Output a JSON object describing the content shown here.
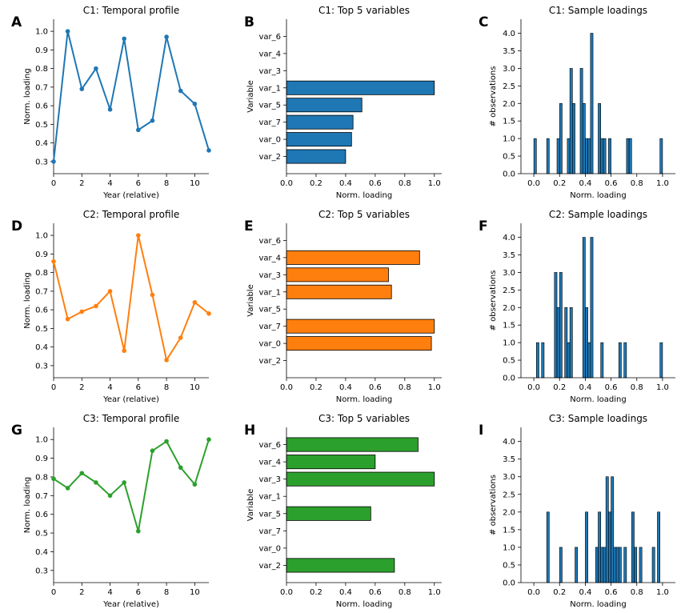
{
  "chart_data": [
    {
      "panel": "A",
      "type": "line",
      "title": "C1: Temporal profile",
      "xlabel": "Year (relative)",
      "ylabel": "Norm. loading",
      "xlim": [
        0,
        11
      ],
      "ylim": [
        0.235,
        1.065
      ],
      "xticks": [
        0,
        2,
        4,
        6,
        8,
        10
      ],
      "yticks": [
        0.3,
        0.4,
        0.5,
        0.6,
        0.7,
        0.8,
        0.9,
        1.0
      ],
      "color": "#1f77b4",
      "x": [
        0,
        1,
        2,
        3,
        4,
        5,
        6,
        7,
        8,
        9,
        10,
        11
      ],
      "y": [
        0.3,
        1.0,
        0.69,
        0.8,
        0.58,
        0.96,
        0.47,
        0.52,
        0.97,
        0.68,
        0.61,
        0.36
      ]
    },
    {
      "panel": "B",
      "type": "bar",
      "orientation": "horizontal",
      "title": "C1: Top 5 variables",
      "xlabel": "Norm. loading",
      "ylabel": "Variable",
      "xlim": [
        0,
        1.05
      ],
      "xticks": [
        0.0,
        0.2,
        0.4,
        0.6,
        0.8,
        1.0
      ],
      "color": "#1f77b4",
      "categories": [
        "var_6",
        "var_4",
        "var_3",
        "var_1",
        "var_5",
        "var_7",
        "var_0",
        "var_2"
      ],
      "values": [
        0,
        0,
        0,
        1.0,
        0.51,
        0.45,
        0.44,
        0.4
      ]
    },
    {
      "panel": "C",
      "type": "bar",
      "subtype": "histogram",
      "title": "C1: Sample loadings",
      "xlabel": "Norm. loading",
      "ylabel": "# observations",
      "xlim": [
        -0.1,
        1.1
      ],
      "ylim": [
        0,
        4.4
      ],
      "xticks": [
        0.0,
        0.2,
        0.4,
        0.6,
        0.8,
        1.0
      ],
      "yticks": [
        0.0,
        0.5,
        1.0,
        1.5,
        2.0,
        2.5,
        3.0,
        3.5,
        4.0
      ],
      "color": "#1f77b4",
      "bin_width": 0.02,
      "bins": [
        [
          0.0,
          1
        ],
        [
          0.1,
          1
        ],
        [
          0.18,
          1
        ],
        [
          0.2,
          2
        ],
        [
          0.26,
          1
        ],
        [
          0.28,
          3
        ],
        [
          0.3,
          2
        ],
        [
          0.36,
          3
        ],
        [
          0.38,
          2
        ],
        [
          0.4,
          1
        ],
        [
          0.42,
          1
        ],
        [
          0.44,
          4
        ],
        [
          0.5,
          2
        ],
        [
          0.52,
          1
        ],
        [
          0.54,
          1
        ],
        [
          0.58,
          1
        ],
        [
          0.72,
          1
        ],
        [
          0.74,
          1
        ],
        [
          0.98,
          1
        ]
      ]
    },
    {
      "panel": "D",
      "type": "line",
      "title": "C2: Temporal profile",
      "xlabel": "Year (relative)",
      "ylabel": "Norm. loading",
      "xlim": [
        0,
        11
      ],
      "ylim": [
        0.235,
        1.065
      ],
      "xticks": [
        0,
        2,
        4,
        6,
        8,
        10
      ],
      "yticks": [
        0.3,
        0.4,
        0.5,
        0.6,
        0.7,
        0.8,
        0.9,
        1.0
      ],
      "color": "#ff7f0e",
      "x": [
        0,
        1,
        2,
        3,
        4,
        5,
        6,
        7,
        8,
        9,
        10,
        11
      ],
      "y": [
        0.86,
        0.55,
        0.59,
        0.62,
        0.7,
        0.38,
        1.0,
        0.68,
        0.33,
        0.45,
        0.64,
        0.58
      ]
    },
    {
      "panel": "E",
      "type": "bar",
      "orientation": "horizontal",
      "title": "C2: Top 5 variables",
      "xlabel": "Norm. loading",
      "ylabel": "Variable",
      "xlim": [
        0,
        1.05
      ],
      "xticks": [
        0.0,
        0.2,
        0.4,
        0.6,
        0.8,
        1.0
      ],
      "color": "#ff7f0e",
      "categories": [
        "var_6",
        "var_4",
        "var_3",
        "var_1",
        "var_5",
        "var_7",
        "var_0",
        "var_2"
      ],
      "values": [
        0,
        0.9,
        0.69,
        0.71,
        0,
        1.0,
        0.98,
        0
      ]
    },
    {
      "panel": "F",
      "type": "bar",
      "subtype": "histogram",
      "title": "C2: Sample loadings",
      "xlabel": "Norm. loading",
      "ylabel": "# observations",
      "xlim": [
        -0.1,
        1.1
      ],
      "ylim": [
        0,
        4.4
      ],
      "xticks": [
        0.0,
        0.2,
        0.4,
        0.6,
        0.8,
        1.0
      ],
      "yticks": [
        0.0,
        0.5,
        1.0,
        1.5,
        2.0,
        2.5,
        3.0,
        3.5,
        4.0
      ],
      "color": "#1f77b4",
      "bin_width": 0.02,
      "bins": [
        [
          0.02,
          1
        ],
        [
          0.06,
          1
        ],
        [
          0.16,
          3
        ],
        [
          0.18,
          2
        ],
        [
          0.2,
          3
        ],
        [
          0.24,
          2
        ],
        [
          0.26,
          1
        ],
        [
          0.28,
          2
        ],
        [
          0.38,
          4
        ],
        [
          0.4,
          2
        ],
        [
          0.42,
          1
        ],
        [
          0.44,
          4
        ],
        [
          0.52,
          1
        ],
        [
          0.66,
          1
        ],
        [
          0.7,
          1
        ],
        [
          0.98,
          1
        ]
      ]
    },
    {
      "panel": "G",
      "type": "line",
      "title": "C3: Temporal profile",
      "xlabel": "Year (relative)",
      "ylabel": "Norm. loading",
      "xlim": [
        0,
        11
      ],
      "ylim": [
        0.235,
        1.065
      ],
      "xticks": [
        0,
        2,
        4,
        6,
        8,
        10
      ],
      "yticks": [
        0.3,
        0.4,
        0.5,
        0.6,
        0.7,
        0.8,
        0.9,
        1.0
      ],
      "color": "#2ca02c",
      "x": [
        0,
        1,
        2,
        3,
        4,
        5,
        6,
        7,
        8,
        9,
        10,
        11
      ],
      "y": [
        0.79,
        0.74,
        0.82,
        0.77,
        0.7,
        0.77,
        0.51,
        0.94,
        0.99,
        0.85,
        0.76,
        1.0
      ]
    },
    {
      "panel": "H",
      "type": "bar",
      "orientation": "horizontal",
      "title": "C3: Top 5 variables",
      "xlabel": "Norm. loading",
      "ylabel": "Variable",
      "xlim": [
        0,
        1.05
      ],
      "xticks": [
        0.0,
        0.2,
        0.4,
        0.6,
        0.8,
        1.0
      ],
      "color": "#2ca02c",
      "categories": [
        "var_6",
        "var_4",
        "var_3",
        "var_1",
        "var_5",
        "var_7",
        "var_0",
        "var_2"
      ],
      "values": [
        0.89,
        0.6,
        1.0,
        0,
        0.57,
        0,
        0,
        0.73
      ]
    },
    {
      "panel": "I",
      "type": "bar",
      "subtype": "histogram",
      "title": "C3: Sample loadings",
      "xlabel": "Norm. loading",
      "ylabel": "# observations",
      "xlim": [
        -0.1,
        1.1
      ],
      "ylim": [
        0,
        4.4
      ],
      "xticks": [
        0.0,
        0.2,
        0.4,
        0.6,
        0.8,
        1.0
      ],
      "yticks": [
        0.0,
        0.5,
        1.0,
        1.5,
        2.0,
        2.5,
        3.0,
        3.5,
        4.0
      ],
      "color": "#1f77b4",
      "bin_width": 0.02,
      "bins": [
        [
          0.1,
          2
        ],
        [
          0.2,
          1
        ],
        [
          0.32,
          1
        ],
        [
          0.4,
          2
        ],
        [
          0.48,
          1
        ],
        [
          0.5,
          2
        ],
        [
          0.52,
          1
        ],
        [
          0.54,
          1
        ],
        [
          0.56,
          3
        ],
        [
          0.58,
          2
        ],
        [
          0.6,
          3
        ],
        [
          0.62,
          1
        ],
        [
          0.64,
          1
        ],
        [
          0.66,
          1
        ],
        [
          0.7,
          1
        ],
        [
          0.76,
          2
        ],
        [
          0.78,
          1
        ],
        [
          0.82,
          1
        ],
        [
          0.92,
          1
        ],
        [
          0.96,
          2
        ]
      ]
    }
  ]
}
